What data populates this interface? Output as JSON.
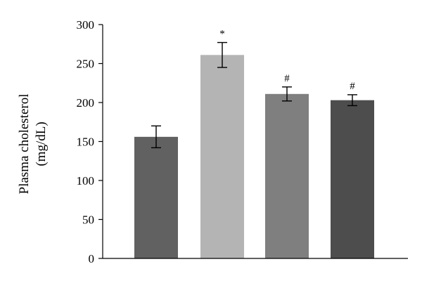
{
  "chart_data": {
    "type": "bar",
    "categories": [
      "",
      "",
      "",
      ""
    ],
    "values": [
      156,
      261,
      211,
      203
    ],
    "errors": [
      14,
      16,
      9,
      7
    ],
    "significance": [
      "",
      "*",
      "#",
      "#"
    ],
    "colors": [
      "#616161",
      "#b4b4b4",
      "#7f7f7f",
      "#4d4d4d"
    ],
    "title": "",
    "xlabel": "",
    "ylabel_lines": [
      "Plasma cholesterol",
      "(mg/dL)"
    ],
    "ylim": [
      0,
      300
    ],
    "yticks": [
      "0",
      "50",
      "100",
      "150",
      "200",
      "250",
      "300"
    ],
    "grid": false,
    "legend": "none"
  }
}
